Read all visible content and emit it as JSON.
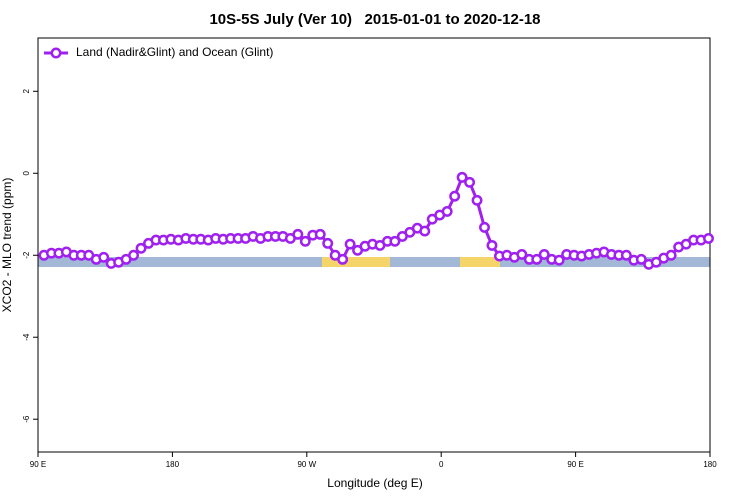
{
  "chart_data": {
    "type": "line",
    "title": "10S-5S July (Ver 10)   2015-01-01 to 2020-12-18",
    "xlabel": "Longitude (deg E)",
    "ylabel": "XCO2 - MLO trend (ppm)",
    "x": [
      94,
      99,
      104,
      109,
      114,
      119,
      124,
      129,
      134,
      139,
      144,
      149,
      154,
      159,
      164,
      169,
      174,
      179,
      184,
      189,
      194,
      199,
      204,
      209,
      214,
      219,
      224,
      229,
      234,
      239,
      244,
      249,
      254,
      259,
      264,
      269,
      274,
      279,
      284,
      289,
      294,
      299,
      304,
      309,
      314,
      319,
      324,
      329,
      334,
      339,
      344,
      349,
      354,
      359,
      364,
      369,
      374,
      379,
      384,
      389,
      394,
      399,
      404,
      409,
      414,
      419,
      424,
      429,
      434,
      439,
      444,
      449,
      454,
      459,
      464,
      469,
      474,
      479,
      484,
      489,
      494,
      499,
      504,
      509,
      514,
      519,
      524,
      529,
      534,
      539
    ],
    "series": [
      {
        "name": "Land (Nadir&Glint) and Ocean (Glint)",
        "color": "#a020f0",
        "values": [
          -2.0,
          -1.95,
          -1.95,
          -1.92,
          -2.0,
          -2.0,
          -2.0,
          -2.1,
          -2.05,
          -2.2,
          -2.17,
          -2.1,
          -2.0,
          -1.83,
          -1.71,
          -1.63,
          -1.63,
          -1.61,
          -1.63,
          -1.59,
          -1.61,
          -1.61,
          -1.63,
          -1.59,
          -1.61,
          -1.59,
          -1.59,
          -1.59,
          -1.54,
          -1.59,
          -1.54,
          -1.54,
          -1.54,
          -1.59,
          -1.49,
          -1.66,
          -1.51,
          -1.49,
          -1.71,
          -2.0,
          -2.1,
          -1.73,
          -1.88,
          -1.78,
          -1.73,
          -1.76,
          -1.66,
          -1.66,
          -1.54,
          -1.44,
          -1.34,
          -1.41,
          -1.12,
          -1.02,
          -0.93,
          -0.56,
          -0.1,
          -0.22,
          -0.66,
          -1.32,
          -1.76,
          -2.02,
          -2.0,
          -2.05,
          -1.98,
          -2.1,
          -2.1,
          -1.98,
          -2.1,
          -2.12,
          -1.98,
          -2.0,
          -2.02,
          -1.98,
          -1.95,
          -1.92,
          -1.98,
          -2.0,
          -2.0,
          -2.12,
          -2.1,
          -2.22,
          -2.17,
          -2.07,
          -2.0,
          -1.8,
          -1.73,
          -1.63,
          -1.63,
          -1.59
        ]
      }
    ],
    "xlim": [
      90,
      540
    ],
    "xticks": [
      {
        "value": 90,
        "label": "90 E"
      },
      180,
      {
        "value": 270,
        "label": "90 W"
      },
      {
        "value": 360,
        "label": "0"
      },
      {
        "value": 450,
        "label": "90 E"
      },
      {
        "value": 540,
        "label": "180"
      }
    ],
    "ylim": [
      -6.8,
      3.3
    ],
    "yticks": [
      2,
      0,
      -2,
      -4,
      -6
    ],
    "legend": "top-left"
  }
}
